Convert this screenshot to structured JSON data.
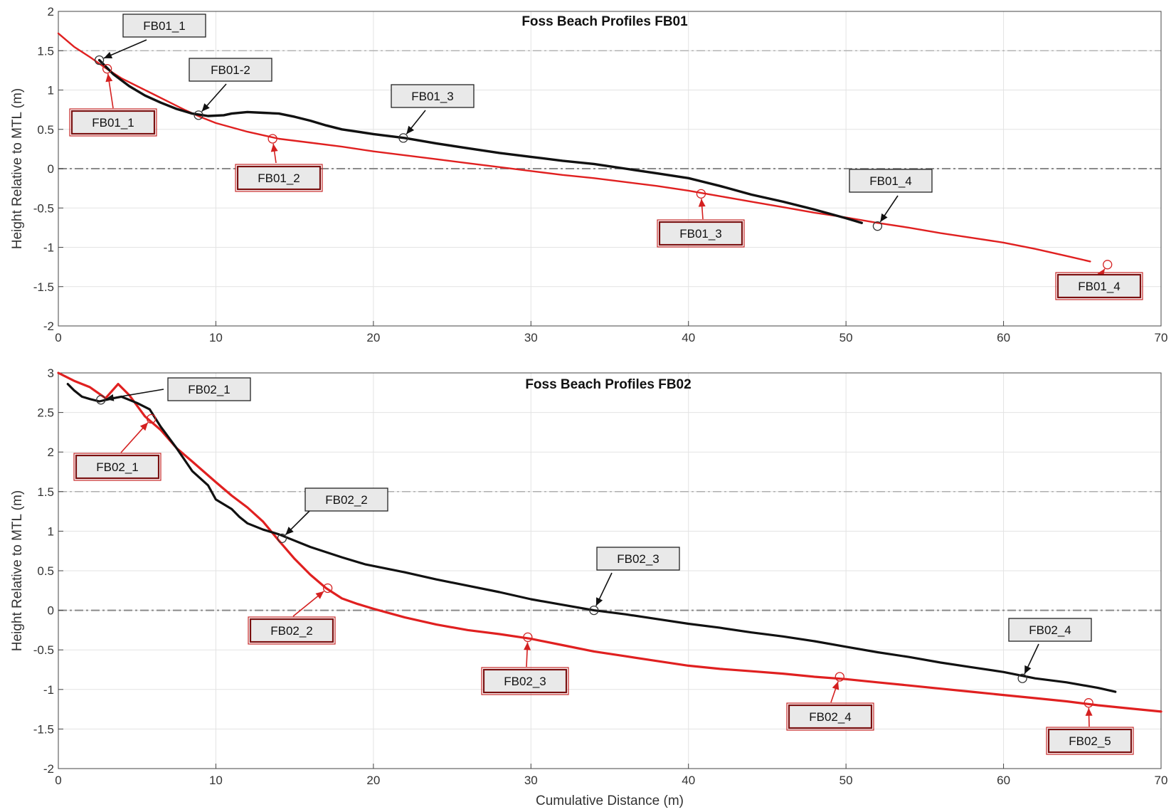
{
  "chart_data": [
    {
      "type": "line",
      "title": "Foss Beach Profiles FB01",
      "xlabel": "",
      "ylabel": "Height Relative to MTL (m)",
      "xlim": [
        0,
        70
      ],
      "ylim": [
        -2,
        2
      ],
      "xticks": [
        "0",
        "10",
        "20",
        "30",
        "40",
        "50",
        "60",
        "70"
      ],
      "yticks": [
        "2",
        "1.5",
        "1",
        "0.5",
        "0",
        "-0.5",
        "-1",
        "-1.5",
        "-2"
      ],
      "grid": true,
      "reference_lines": [
        1.5,
        0
      ],
      "series": [
        {
          "color": "#e02020",
          "x": [
            0,
            1,
            2,
            3,
            4,
            5,
            6,
            7,
            8,
            9,
            10,
            12,
            14,
            16,
            18,
            20,
            22,
            24,
            26,
            28,
            30,
            32,
            34,
            36,
            38,
            40,
            42,
            44,
            46,
            48,
            50,
            52,
            54,
            56,
            58,
            60,
            62,
            64,
            65.5
          ],
          "y": [
            1.72,
            1.55,
            1.42,
            1.28,
            1.15,
            1.05,
            0.95,
            0.85,
            0.75,
            0.66,
            0.58,
            0.47,
            0.38,
            0.33,
            0.28,
            0.22,
            0.17,
            0.12,
            0.07,
            0.02,
            -0.03,
            -0.08,
            -0.12,
            -0.17,
            -0.22,
            -0.28,
            -0.35,
            -0.42,
            -0.49,
            -0.56,
            -0.62,
            -0.69,
            -0.75,
            -0.82,
            -0.88,
            -0.94,
            -1.02,
            -1.11,
            -1.18
          ]
        },
        {
          "color": "#111111",
          "x": [
            2.6,
            3.5,
            4.5,
            5.5,
            6.5,
            7.5,
            8.5,
            9.5,
            10.5,
            11,
            12,
            13,
            14,
            15,
            16,
            17,
            18,
            20,
            22,
            24,
            26,
            28,
            30,
            32,
            34,
            36,
            38,
            40,
            42,
            44,
            46,
            48,
            50,
            51
          ],
          "y": [
            1.38,
            1.2,
            1.05,
            0.93,
            0.84,
            0.76,
            0.7,
            0.67,
            0.68,
            0.7,
            0.72,
            0.71,
            0.7,
            0.66,
            0.61,
            0.55,
            0.5,
            0.44,
            0.39,
            0.32,
            0.26,
            0.2,
            0.15,
            0.1,
            0.06,
            0.0,
            -0.06,
            -0.12,
            -0.22,
            -0.33,
            -0.42,
            -0.52,
            -0.63,
            -0.69
          ]
        }
      ],
      "annotations": [
        {
          "label": "FB01_1",
          "style": "black",
          "x": 2.6,
          "y": 1.38
        },
        {
          "label": "FB01-2",
          "style": "black",
          "x": 8.9,
          "y": 0.68
        },
        {
          "label": "FB01_3",
          "style": "black",
          "x": 21.9,
          "y": 0.39
        },
        {
          "label": "FB01_4",
          "style": "black",
          "x": 52.0,
          "y": -0.73
        },
        {
          "label": "FB01_1",
          "style": "red",
          "x": 3.1,
          "y": 1.27
        },
        {
          "label": "FB01_2",
          "style": "red",
          "x": 13.6,
          "y": 0.38
        },
        {
          "label": "FB01_3",
          "style": "red",
          "x": 40.8,
          "y": -0.32
        },
        {
          "label": "FB01_4",
          "style": "red",
          "x": 66.6,
          "y": -1.22
        }
      ]
    },
    {
      "type": "line",
      "title": "Foss Beach Profiles FB02",
      "xlabel": "Cumulative Distance (m)",
      "ylabel": "Height Relative to MTL (m)",
      "xlim": [
        0,
        70
      ],
      "ylim": [
        -2,
        3
      ],
      "xticks": [
        "0",
        "10",
        "20",
        "30",
        "40",
        "50",
        "60",
        "70"
      ],
      "yticks": [
        "3",
        "2.5",
        "2",
        "1.5",
        "1",
        "0.5",
        "0",
        "-0.5",
        "-1",
        "-1.5",
        "-2"
      ],
      "grid": true,
      "reference_lines": [
        1.5,
        0
      ],
      "series": [
        {
          "color": "#e02020",
          "x": [
            0,
            1,
            2,
            2.5,
            3,
            3.8,
            4.5,
            5.5,
            6.5,
            7.5,
            8.5,
            10,
            11,
            12,
            13,
            14,
            15,
            16,
            17,
            18,
            19,
            20,
            22,
            24,
            26,
            28,
            30,
            32,
            34,
            36,
            38,
            40,
            42,
            44,
            46,
            48,
            50,
            52,
            54,
            56,
            58,
            60,
            62,
            64,
            66,
            68,
            70
          ],
          "y": [
            3.0,
            2.9,
            2.82,
            2.75,
            2.68,
            2.86,
            2.72,
            2.45,
            2.28,
            2.05,
            1.88,
            1.62,
            1.45,
            1.3,
            1.12,
            0.88,
            0.65,
            0.45,
            0.28,
            0.15,
            0.08,
            0.02,
            -0.09,
            -0.18,
            -0.25,
            -0.3,
            -0.36,
            -0.44,
            -0.52,
            -0.58,
            -0.64,
            -0.7,
            -0.74,
            -0.77,
            -0.8,
            -0.84,
            -0.87,
            -0.91,
            -0.95,
            -0.99,
            -1.03,
            -1.07,
            -1.11,
            -1.15,
            -1.2,
            -1.24,
            -1.28
          ]
        },
        {
          "color": "#111111",
          "x": [
            0.6,
            1,
            1.5,
            2,
            2.6,
            3.5,
            4,
            5,
            5.8,
            6.5,
            7.5,
            8.5,
            9.5,
            10,
            11,
            11.5,
            12,
            13,
            14,
            15,
            16,
            18,
            19.5,
            22,
            24,
            26,
            28,
            30,
            32,
            34,
            36,
            38,
            40,
            42,
            44,
            46,
            48,
            50,
            52,
            54,
            56,
            58,
            60,
            62,
            64,
            66,
            67.1
          ],
          "y": [
            2.86,
            2.78,
            2.7,
            2.67,
            2.64,
            2.68,
            2.7,
            2.62,
            2.54,
            2.32,
            2.05,
            1.76,
            1.58,
            1.4,
            1.28,
            1.18,
            1.1,
            1.02,
            0.96,
            0.88,
            0.8,
            0.67,
            0.58,
            0.48,
            0.39,
            0.31,
            0.23,
            0.14,
            0.07,
            0.0,
            -0.05,
            -0.11,
            -0.17,
            -0.22,
            -0.28,
            -0.33,
            -0.39,
            -0.46,
            -0.53,
            -0.59,
            -0.66,
            -0.72,
            -0.78,
            -0.86,
            -0.91,
            -0.98,
            -1.03
          ]
        }
      ],
      "annotations": [
        {
          "label": "FB02_1",
          "style": "black",
          "x": 2.7,
          "y": 2.66
        },
        {
          "label": "FB02_2",
          "style": "black",
          "x": 14.2,
          "y": 0.91
        },
        {
          "label": "FB02_3",
          "style": "black",
          "x": 34.0,
          "y": 0.0
        },
        {
          "label": "FB02_4",
          "style": "black",
          "x": 61.2,
          "y": -0.86
        },
        {
          "label": "FB02_1",
          "style": "red",
          "x": 5.9,
          "y": 2.42
        },
        {
          "label": "FB02_2",
          "style": "red",
          "x": 17.1,
          "y": 0.28
        },
        {
          "label": "FB02_3",
          "style": "red",
          "x": 29.8,
          "y": -0.34
        },
        {
          "label": "FB02_4",
          "style": "red",
          "x": 49.6,
          "y": -0.84
        },
        {
          "label": "FB02_5",
          "style": "red",
          "x": 65.4,
          "y": -1.17
        }
      ]
    }
  ]
}
